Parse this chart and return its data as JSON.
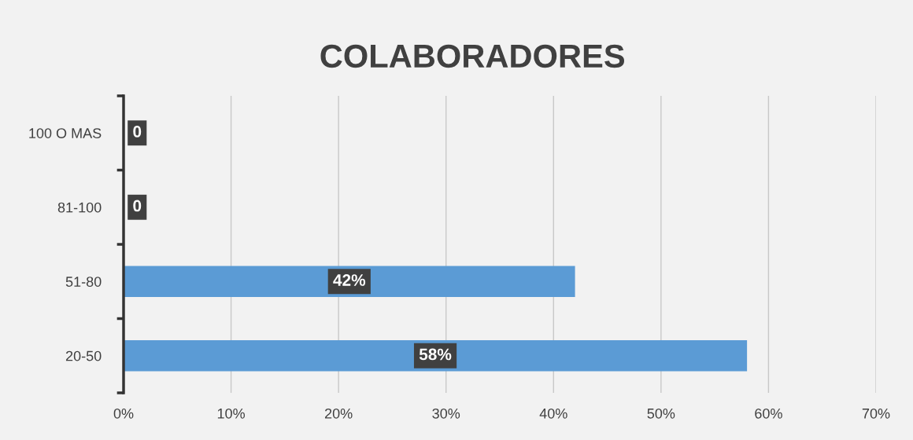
{
  "chart_data": {
    "type": "bar",
    "orientation": "horizontal",
    "title": "COLABORADORES",
    "categories": [
      "100 O MAS",
      "81-100",
      "51-80",
      "20-50"
    ],
    "values": [
      0,
      0,
      42,
      58
    ],
    "value_labels": [
      "0",
      "0",
      "42%",
      "58%"
    ],
    "color": "#5b9bd5",
    "xlim": [
      0,
      70
    ],
    "xticks": [
      {
        "value": 0,
        "label": "0%"
      },
      {
        "value": 10,
        "label": "10%"
      },
      {
        "value": 20,
        "label": "20%"
      },
      {
        "value": 30,
        "label": "30%"
      },
      {
        "value": 40,
        "label": "40%"
      },
      {
        "value": 50,
        "label": "50%"
      },
      {
        "value": 60,
        "label": "60%"
      },
      {
        "value": 70,
        "label": "70%"
      }
    ],
    "grid": "x"
  }
}
